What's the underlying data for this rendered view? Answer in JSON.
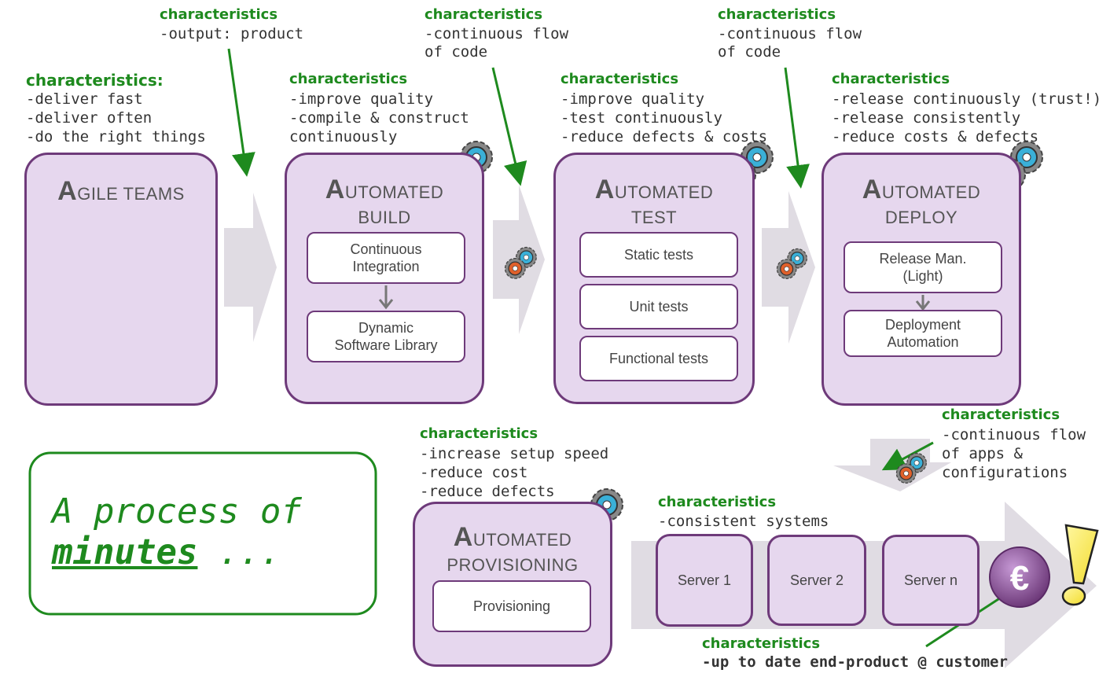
{
  "colors": {
    "stage_fill": "#e6d7ee",
    "stage_border": "#6e3a7a",
    "green": "#1e8a1e",
    "arrow_grey": "#e0dce3"
  },
  "stages": {
    "agile": {
      "title_initial": "A",
      "title_rest": "GILE TEAMS"
    },
    "build": {
      "title_initial": "A",
      "title_rest": "UTOMATED",
      "title_line2": "BUILD",
      "items": [
        "Continuous\nIntegration",
        "Dynamic\nSoftware Library"
      ]
    },
    "test": {
      "title_initial": "A",
      "title_rest": "UTOMATED",
      "title_line2": "TEST",
      "items": [
        "Static tests",
        "Unit tests",
        "Functional tests"
      ]
    },
    "deploy": {
      "title_initial": "A",
      "title_rest": "UTOMATED",
      "title_line2": "DEPLOY",
      "items": [
        "Release Man.\n(Light)",
        "Deployment\nAutomation"
      ]
    },
    "provisioning": {
      "title_initial": "A",
      "title_rest": "UTOMATED",
      "title_line2": "PROVISIONING",
      "items": [
        "Provisioning"
      ]
    }
  },
  "servers": [
    "Server 1",
    "Server 2",
    "Server n"
  ],
  "characteristics": {
    "agile": {
      "title": "characteristics:",
      "lines": [
        "-deliver fast",
        "-deliver often",
        "-do the right things"
      ]
    },
    "flow1": {
      "title": "characteristics",
      "lines": [
        "-output: product"
      ]
    },
    "build": {
      "title": "characteristics",
      "lines": [
        "-improve quality",
        "-compile & construct",
        "continuously"
      ]
    },
    "flow2": {
      "title": "characteristics",
      "lines": [
        "-continuous flow",
        "of code"
      ]
    },
    "test": {
      "title": "characteristics",
      "lines": [
        "-improve quality",
        "-test continuously",
        "-reduce defects & costs"
      ]
    },
    "flow3": {
      "title": "characteristics",
      "lines": [
        "-continuous flow",
        "of code"
      ]
    },
    "deploy": {
      "title": "characteristics",
      "lines": [
        "-release continuously (trust!)",
        "-release consistently",
        "-reduce costs & defects"
      ]
    },
    "flow4": {
      "title": "characteristics",
      "lines": [
        "-continuous flow",
        "of apps &",
        "configurations"
      ]
    },
    "provisioning": {
      "title": "characteristics",
      "lines": [
        "-increase setup speed",
        "-reduce cost",
        "-reduce defects"
      ]
    },
    "servers": {
      "title": "characteristics",
      "lines": [
        "-consistent systems"
      ]
    },
    "customer": {
      "title": "characteristics",
      "lines": [
        "-up to date end-product @ customer"
      ]
    }
  },
  "slogan": {
    "line1": "A process of",
    "line2_word": "minutes",
    "line2_rest": " ..."
  },
  "icons": {
    "gears": "gears-icon",
    "euro": "euro-coin-icon",
    "exclamation": "exclamation-icon"
  },
  "euro_symbol": "€",
  "exclamation_symbol": "!"
}
